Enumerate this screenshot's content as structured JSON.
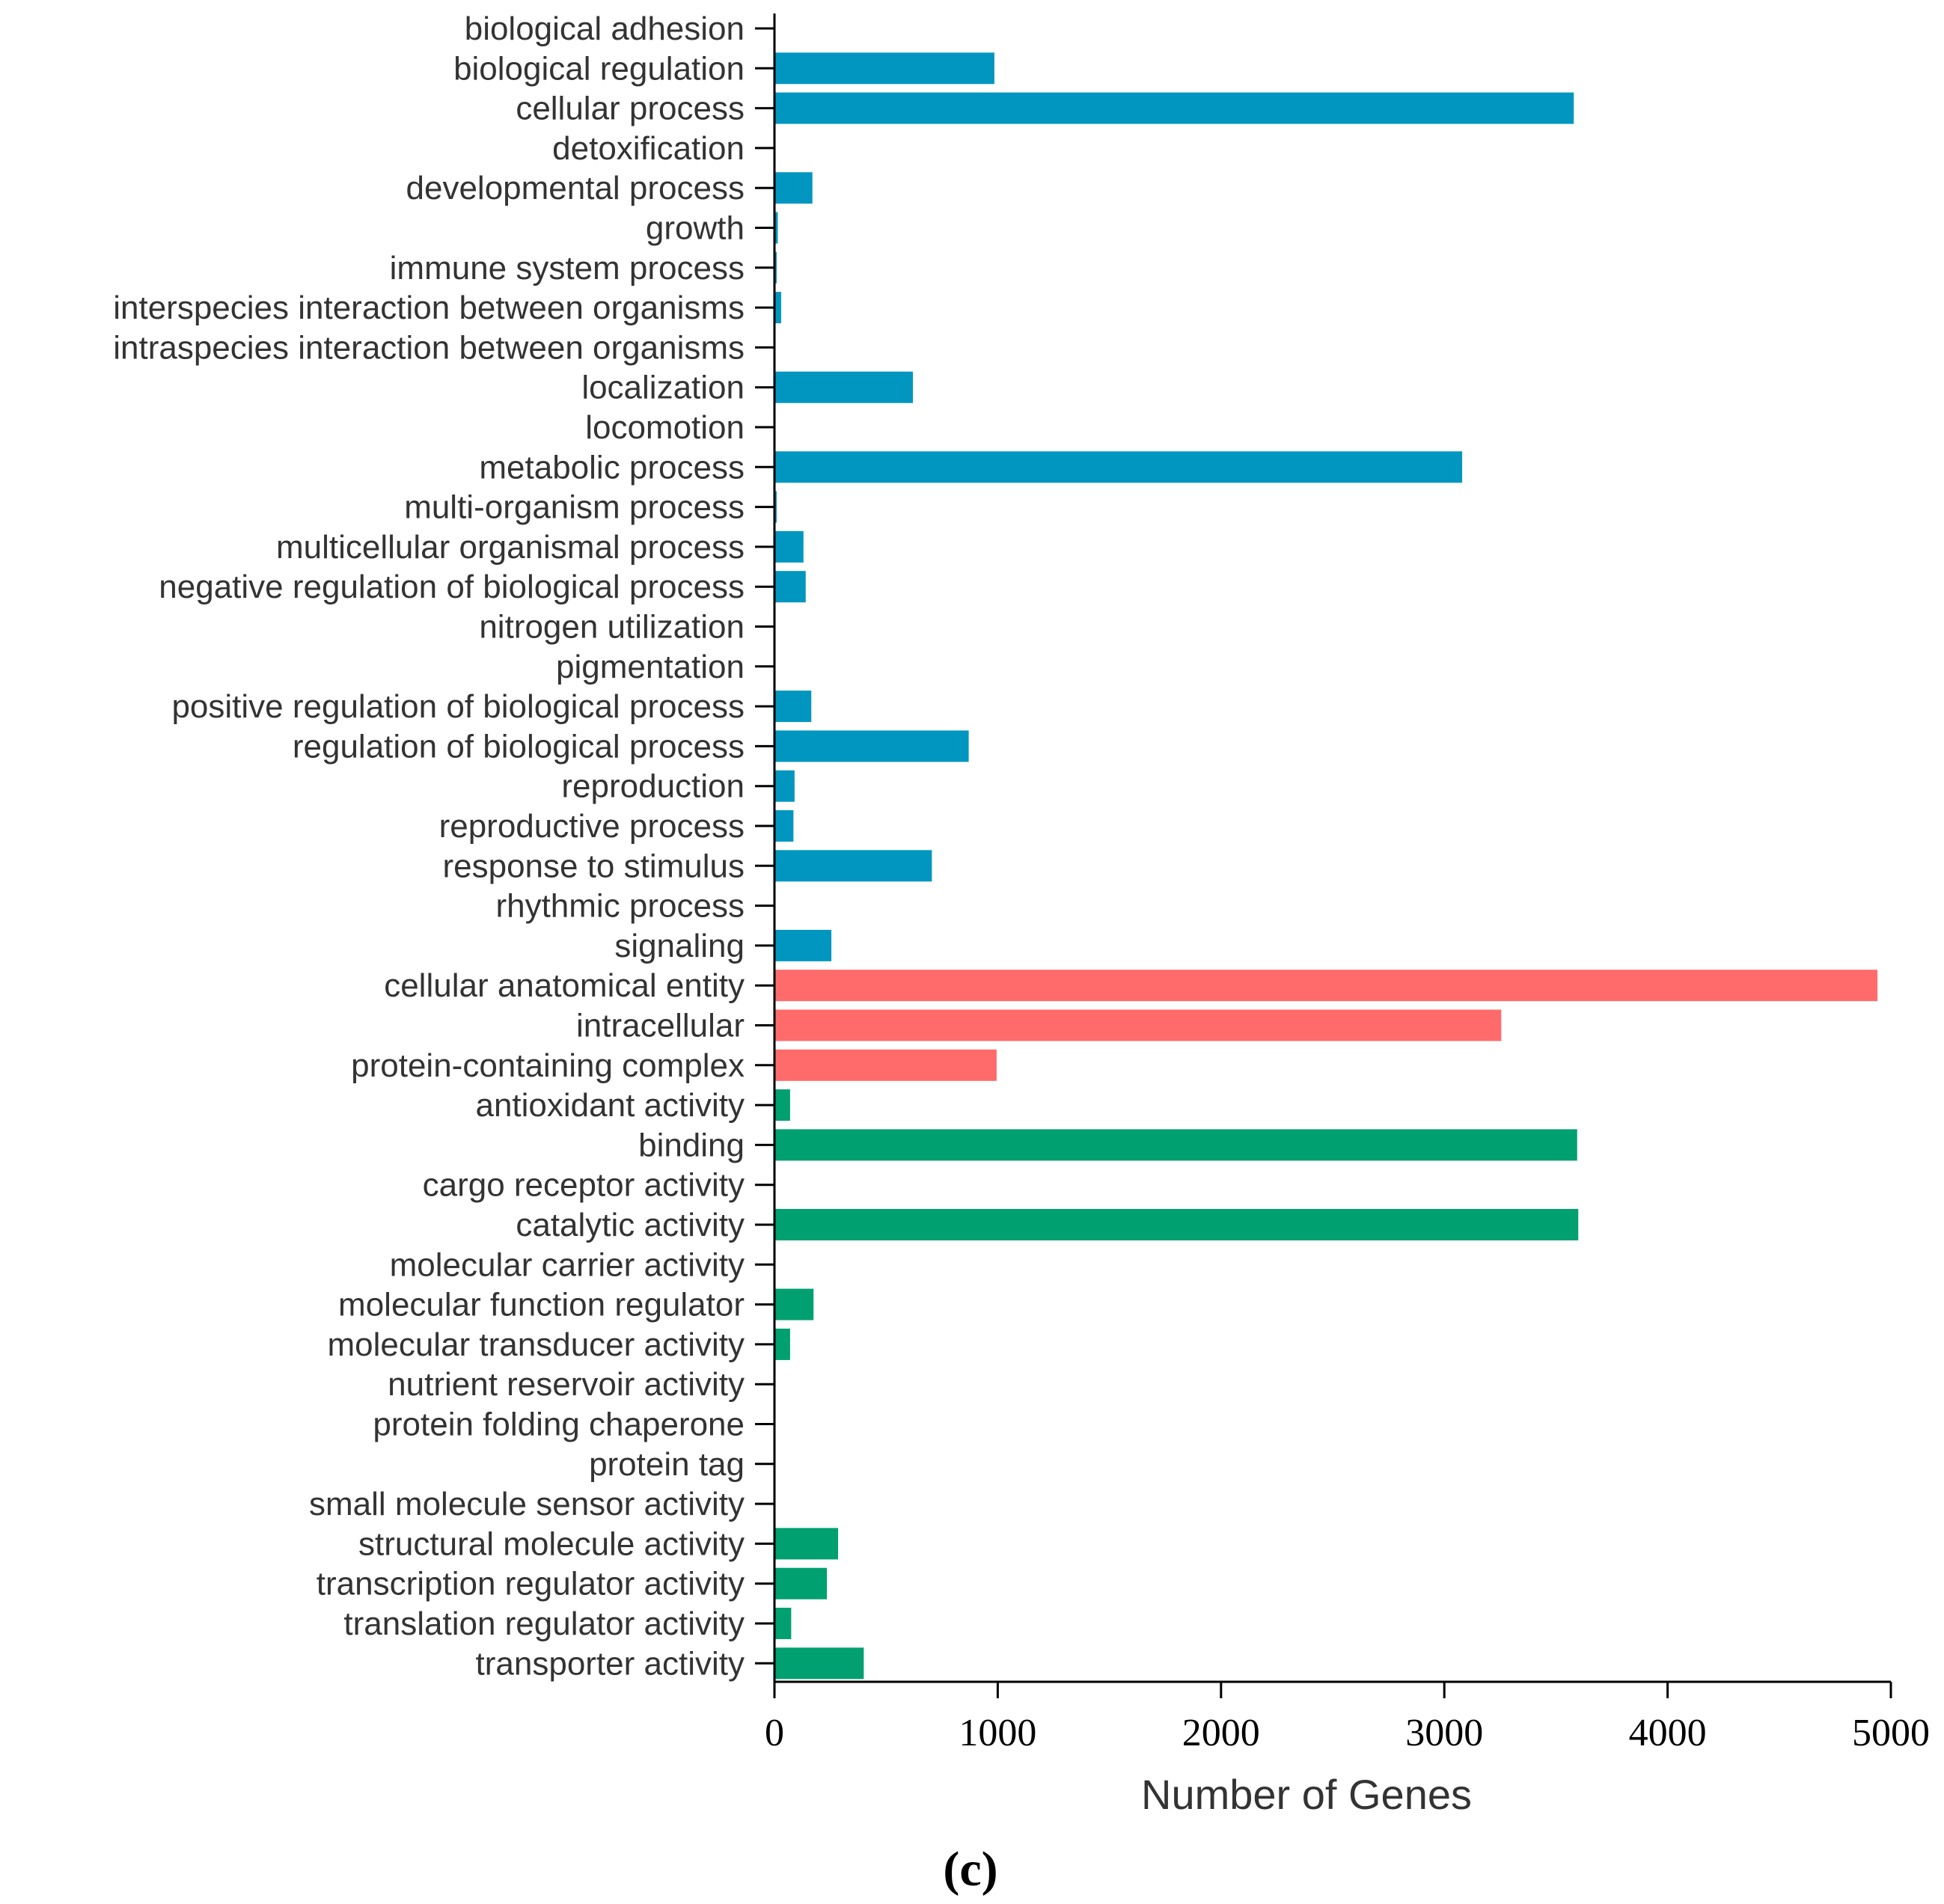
{
  "colors": {
    "biological_process": "#0096c0",
    "cellular_component": "#ff6b6b",
    "molecular_function": "#00a070"
  },
  "panel_label": "(c)",
  "chart_data": {
    "type": "bar",
    "orientation": "horizontal",
    "xlabel": "Number of Genes",
    "ylabel": "",
    "xlim": [
      0,
      5000
    ],
    "xticks": [
      "0",
      "1000",
      "2000",
      "3000",
      "4000",
      "5000"
    ],
    "grid": false,
    "categories": [
      {
        "label": "biological adhesion",
        "value": 0,
        "group": "biological_process"
      },
      {
        "label": "biological regulation",
        "value": 985,
        "group": "biological_process"
      },
      {
        "label": "cellular process",
        "value": 3580,
        "group": "biological_process"
      },
      {
        "label": "detoxification",
        "value": 0,
        "group": "biological_process"
      },
      {
        "label": "developmental process",
        "value": 170,
        "group": "biological_process"
      },
      {
        "label": "growth",
        "value": 15,
        "group": "biological_process"
      },
      {
        "label": "immune system process",
        "value": 10,
        "group": "biological_process"
      },
      {
        "label": "interspecies interaction between organisms",
        "value": 30,
        "group": "biological_process"
      },
      {
        "label": "intraspecies interaction between organisms",
        "value": 0,
        "group": "biological_process"
      },
      {
        "label": "localization",
        "value": 620,
        "group": "biological_process"
      },
      {
        "label": "locomotion",
        "value": 0,
        "group": "biological_process"
      },
      {
        "label": "metabolic process",
        "value": 3080,
        "group": "biological_process"
      },
      {
        "label": "multi-organism process",
        "value": 10,
        "group": "biological_process"
      },
      {
        "label": "multicellular organismal process",
        "value": 130,
        "group": "biological_process"
      },
      {
        "label": "negative regulation of biological process",
        "value": 140,
        "group": "biological_process"
      },
      {
        "label": "nitrogen utilization",
        "value": 0,
        "group": "biological_process"
      },
      {
        "label": "pigmentation",
        "value": 0,
        "group": "biological_process"
      },
      {
        "label": "positive regulation of biological process",
        "value": 165,
        "group": "biological_process"
      },
      {
        "label": "regulation of biological process",
        "value": 870,
        "group": "biological_process"
      },
      {
        "label": "reproduction",
        "value": 90,
        "group": "biological_process"
      },
      {
        "label": "reproductive process",
        "value": 85,
        "group": "biological_process"
      },
      {
        "label": "response to stimulus",
        "value": 705,
        "group": "biological_process"
      },
      {
        "label": "rhythmic process",
        "value": 0,
        "group": "biological_process"
      },
      {
        "label": "signaling",
        "value": 255,
        "group": "biological_process"
      },
      {
        "label": "cellular anatomical entity",
        "value": 4940,
        "group": "cellular_component"
      },
      {
        "label": "intracellular",
        "value": 3255,
        "group": "cellular_component"
      },
      {
        "label": "protein-containing complex",
        "value": 995,
        "group": "cellular_component"
      },
      {
        "label": "antioxidant activity",
        "value": 70,
        "group": "molecular_function"
      },
      {
        "label": "binding",
        "value": 3595,
        "group": "molecular_function"
      },
      {
        "label": "cargo receptor activity",
        "value": 0,
        "group": "molecular_function"
      },
      {
        "label": "catalytic activity",
        "value": 3600,
        "group": "molecular_function"
      },
      {
        "label": "molecular carrier activity",
        "value": 0,
        "group": "molecular_function"
      },
      {
        "label": "molecular function regulator",
        "value": 175,
        "group": "molecular_function"
      },
      {
        "label": "molecular transducer activity",
        "value": 70,
        "group": "molecular_function"
      },
      {
        "label": "nutrient reservoir activity",
        "value": 0,
        "group": "molecular_function"
      },
      {
        "label": "protein folding chaperone",
        "value": 0,
        "group": "molecular_function"
      },
      {
        "label": "protein tag",
        "value": 0,
        "group": "molecular_function"
      },
      {
        "label": "small molecule sensor activity",
        "value": 0,
        "group": "molecular_function"
      },
      {
        "label": "structural molecule activity",
        "value": 285,
        "group": "molecular_function"
      },
      {
        "label": "transcription regulator activity",
        "value": 235,
        "group": "molecular_function"
      },
      {
        "label": "translation regulator activity",
        "value": 75,
        "group": "molecular_function"
      },
      {
        "label": "transporter activity",
        "value": 400,
        "group": "molecular_function"
      }
    ]
  }
}
